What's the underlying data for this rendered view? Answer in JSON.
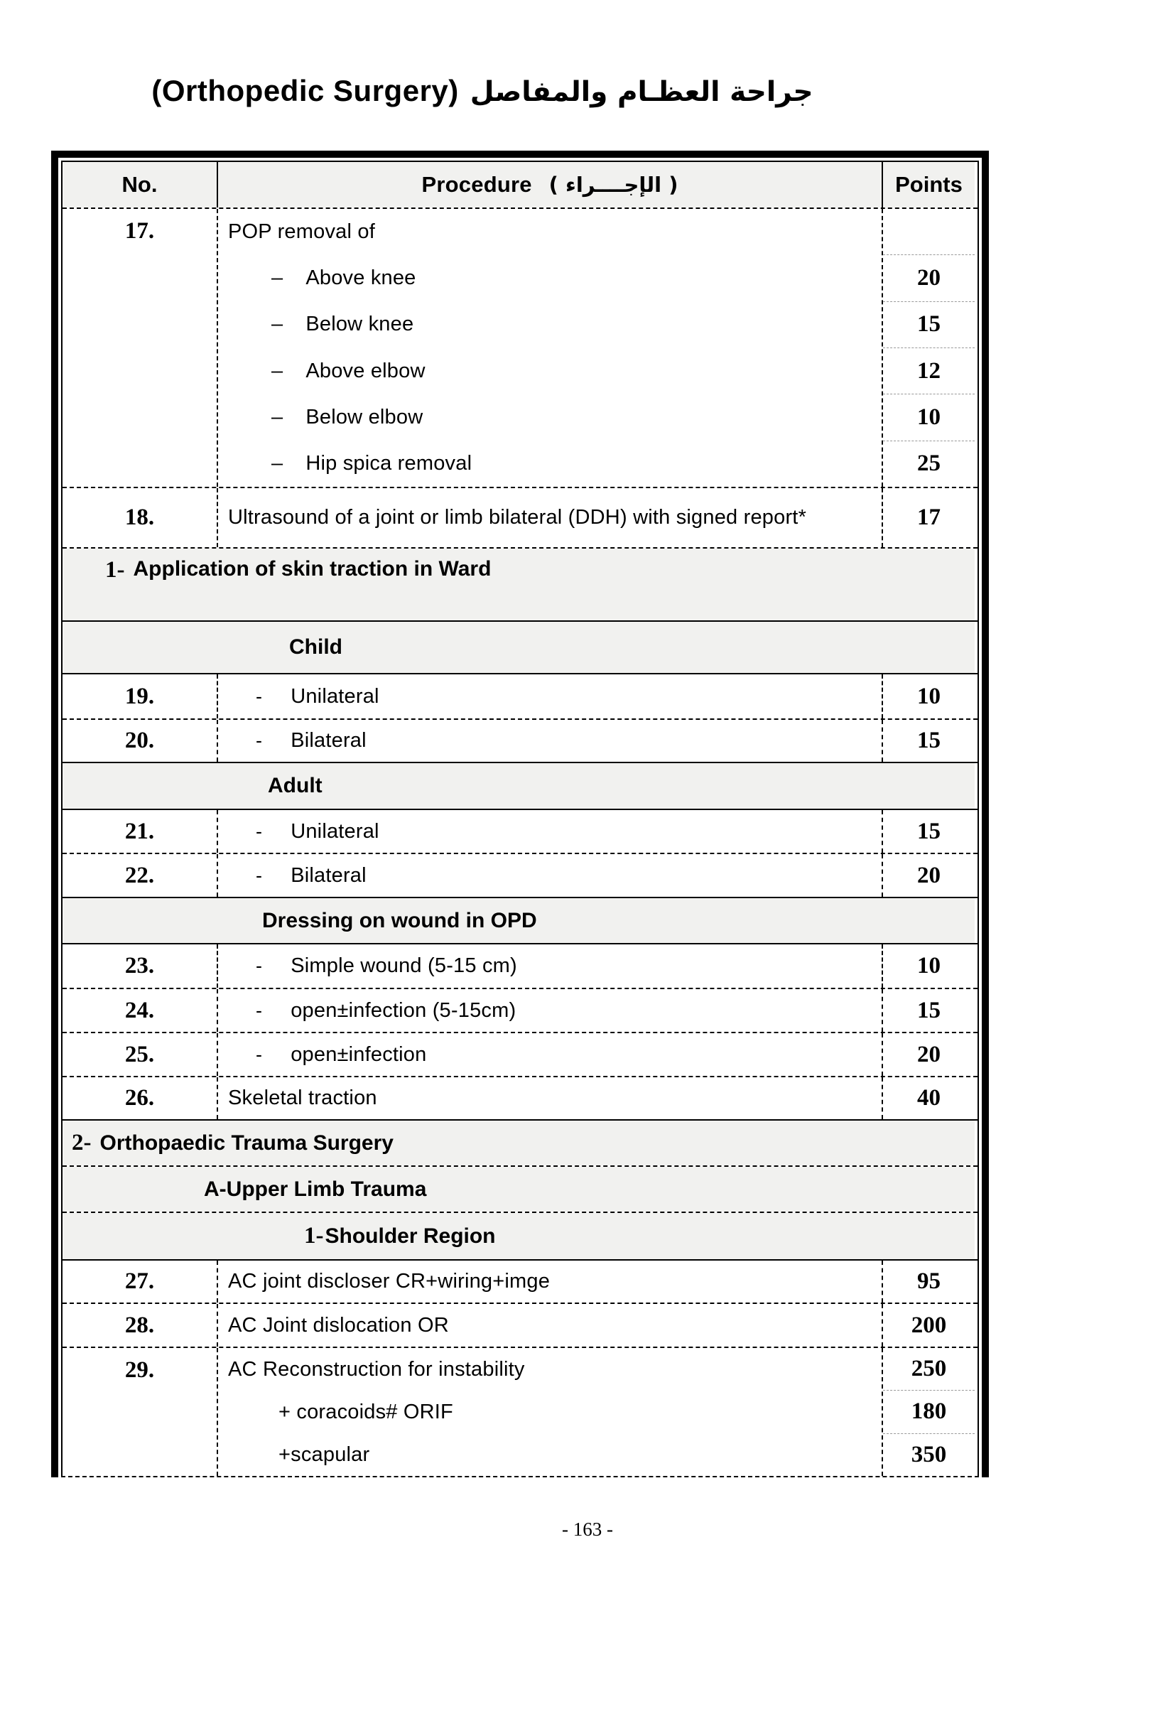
{
  "page": {
    "title_en": "(Orthopedic Surgery)",
    "title_ar": "جراحة العظـام والمفاصل",
    "page_number": "- 163 -"
  },
  "colors": {
    "section_row_bg": "#f1f1ef",
    "border": "#000000"
  },
  "table": {
    "header": {
      "no": "No.",
      "procedure": "Procedure",
      "procedure_ar": "( الإجــــراء )",
      "points": "Points"
    },
    "r17": {
      "no": "17.",
      "heading": "POP removal of",
      "items": [
        {
          "dash": "–",
          "text": "Above knee",
          "points": "20"
        },
        {
          "dash": "–",
          "text": "Below knee",
          "points": "15"
        },
        {
          "dash": "–",
          "text": "Above elbow",
          "points": "12"
        },
        {
          "dash": "–",
          "text": "Below elbow",
          "points": "10"
        },
        {
          "dash": "–",
          "text": "Hip spica removal",
          "points": "25"
        }
      ]
    },
    "r18": {
      "no": "18.",
      "text": "Ultrasound of a joint or limb bilateral (DDH) with signed report*",
      "points": "17"
    },
    "sec1": {
      "prefix": "1-",
      "label": "Application of skin traction in Ward"
    },
    "secChild": {
      "label": "Child"
    },
    "r19": {
      "no": "19.",
      "dash": "-",
      "text": "Unilateral",
      "points": "10"
    },
    "r20": {
      "no": "20.",
      "dash": "-",
      "text": "Bilateral",
      "points": "15"
    },
    "secAdult": {
      "label": "Adult"
    },
    "r21": {
      "no": "21.",
      "dash": "-",
      "text": "Unilateral",
      "points": "15"
    },
    "r22": {
      "no": "22.",
      "dash": "-",
      "text": "Bilateral",
      "points": "20"
    },
    "secDressing": {
      "label": "Dressing on wound in OPD"
    },
    "r23": {
      "no": "23.",
      "dash": "-",
      "text": "Simple wound (5-15 cm)",
      "points": "10"
    },
    "r24": {
      "no": "24.",
      "dash": "-",
      "text": "open±infection (5-15cm)",
      "points": "15"
    },
    "r25": {
      "no": "25.",
      "dash": "-",
      "text": "open±infection",
      "points": "20"
    },
    "r26": {
      "no": "26.",
      "text": "Skeletal traction",
      "points": "40"
    },
    "sec2": {
      "prefix": "2-",
      "label": "Orthopaedic Trauma Surgery"
    },
    "secUpper": {
      "label": "A-Upper Limb Trauma"
    },
    "secShoulder": {
      "prefix": "1-",
      "label": "Shoulder Region"
    },
    "r27": {
      "no": "27.",
      "text": "AC joint discloser CR+wiring+imge",
      "points": "95"
    },
    "r28": {
      "no": "28.",
      "text": "AC Joint dislocation OR",
      "points": "200"
    },
    "r29": {
      "no": "29.",
      "lines": [
        {
          "text": "AC Reconstruction for instability",
          "points": "250"
        },
        {
          "text": "+ coracoids# ORIF",
          "points": "180"
        },
        {
          "text": "+scapular",
          "points": "350"
        }
      ]
    }
  }
}
